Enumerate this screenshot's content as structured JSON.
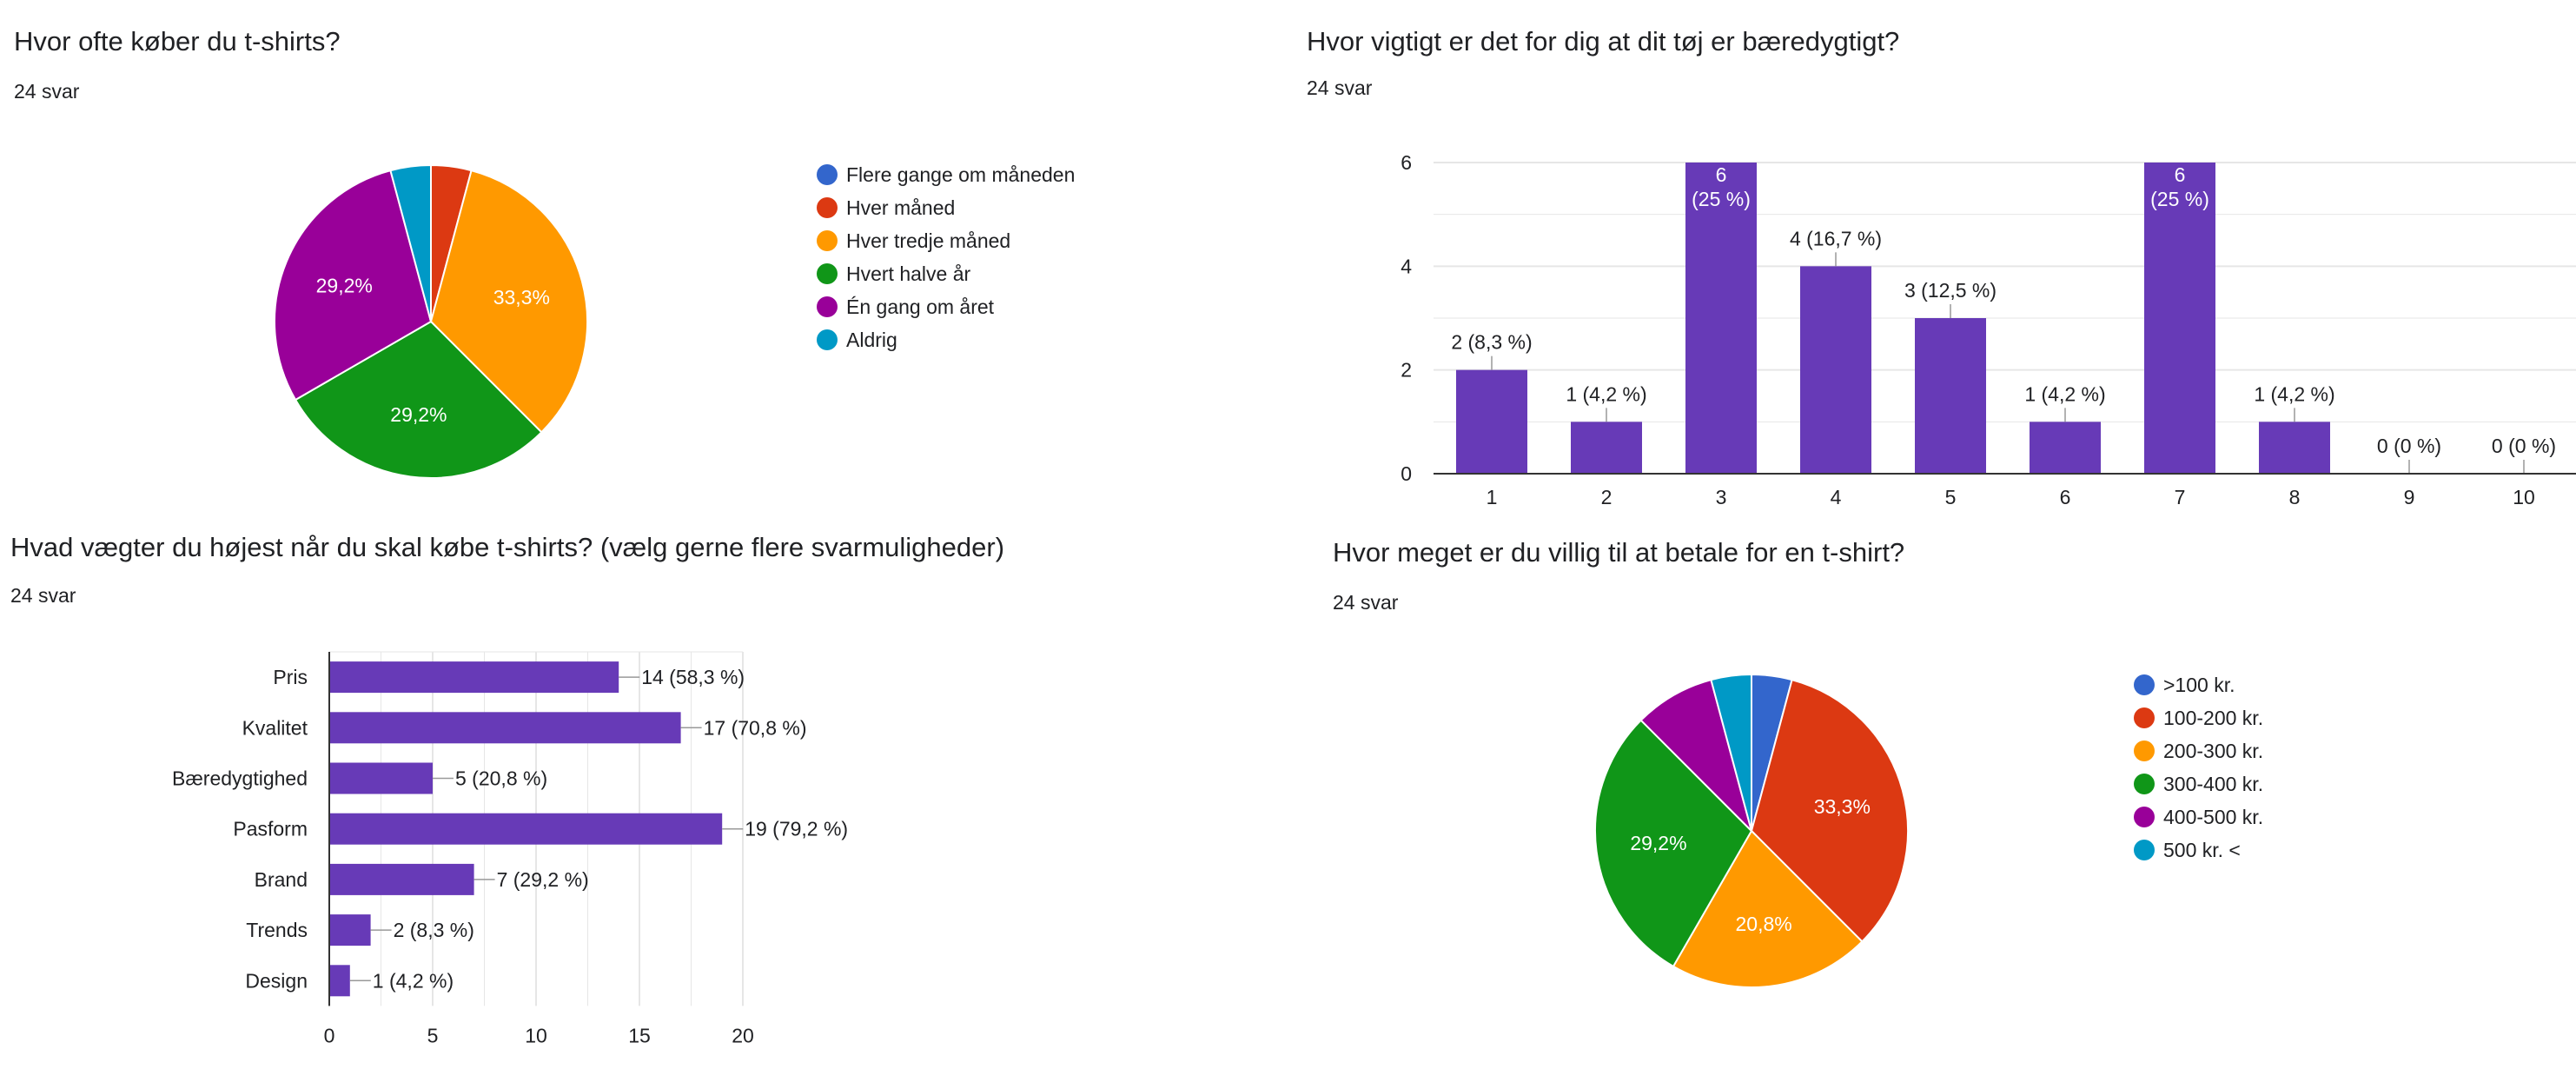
{
  "colors": {
    "bar": "#673ab7",
    "grid": "#e6e6e6",
    "axis": "#333333",
    "text": "#202124",
    "pie": [
      "#3366cc",
      "#dc3912",
      "#ff9900",
      "#109618",
      "#990099",
      "#0099c6"
    ]
  },
  "chart_data": [
    {
      "type": "pie",
      "title": "Hvor ofte køber du t-shirts?",
      "subtitle": "24 svar",
      "categories": [
        "Flere gange om måneden",
        "Hver måned",
        "Hver tredje måned",
        "Hvert halve år",
        "Én gang om året",
        "Aldrig"
      ],
      "values": [
        0,
        1,
        8,
        7,
        7,
        1
      ],
      "slice_labels": [
        "",
        "",
        "33,3%",
        "29,2%",
        "29,2%",
        ""
      ],
      "legend": "right"
    },
    {
      "type": "bar",
      "title": "Hvor vigtigt er det for dig at dit tøj er bæredygtigt?",
      "subtitle": "24 svar",
      "categories": [
        "1",
        "2",
        "3",
        "4",
        "5",
        "6",
        "7",
        "8",
        "9",
        "10"
      ],
      "values": [
        2,
        1,
        6,
        4,
        3,
        1,
        6,
        1,
        0,
        0
      ],
      "data_labels": [
        "2 (8,3 %)",
        "1 (4,2 %)",
        "6\n(25 %)",
        "4 (16,7 %)",
        "3 (12,5 %)",
        "1 (4,2 %)",
        "6\n(25 %)",
        "1 (4,2 %)",
        "0 (0 %)",
        "0 (0 %)"
      ],
      "yticks": [
        "0",
        "2",
        "4",
        "6"
      ],
      "ylim": [
        0,
        6
      ],
      "grid": true
    },
    {
      "type": "bar",
      "orientation": "horizontal",
      "title": "Hvad vægter du højest når du skal købe t-shirts? (vælg gerne flere svarmuligheder)",
      "subtitle": "24 svar",
      "categories": [
        "Pris",
        "Kvalitet",
        "Bæredygtighed",
        "Pasform",
        "Brand",
        "Trends",
        "Design"
      ],
      "values": [
        14,
        17,
        5,
        19,
        7,
        2,
        1
      ],
      "data_labels": [
        "14 (58,3 %)",
        "17 (70,8 %)",
        "5 (20,8 %)",
        "19 (79,2 %)",
        "7 (29,2 %)",
        "2 (8,3 %)",
        "1 (4,2 %)"
      ],
      "xticks": [
        "0",
        "5",
        "10",
        "15",
        "20"
      ],
      "xlim": [
        0,
        20
      ],
      "grid": true
    },
    {
      "type": "pie",
      "title": "Hvor meget er du villig til at betale for en t-shirt?",
      "subtitle": "24 svar",
      "categories": [
        ">100 kr.",
        "100-200 kr.",
        "200-300 kr.",
        "300-400 kr.",
        "400-500 kr.",
        "500 kr. <"
      ],
      "values": [
        1,
        8,
        5,
        7,
        2,
        1
      ],
      "slice_labels": [
        "",
        "33,3%",
        "20,8%",
        "29,2%",
        "",
        ""
      ],
      "legend": "right"
    }
  ]
}
